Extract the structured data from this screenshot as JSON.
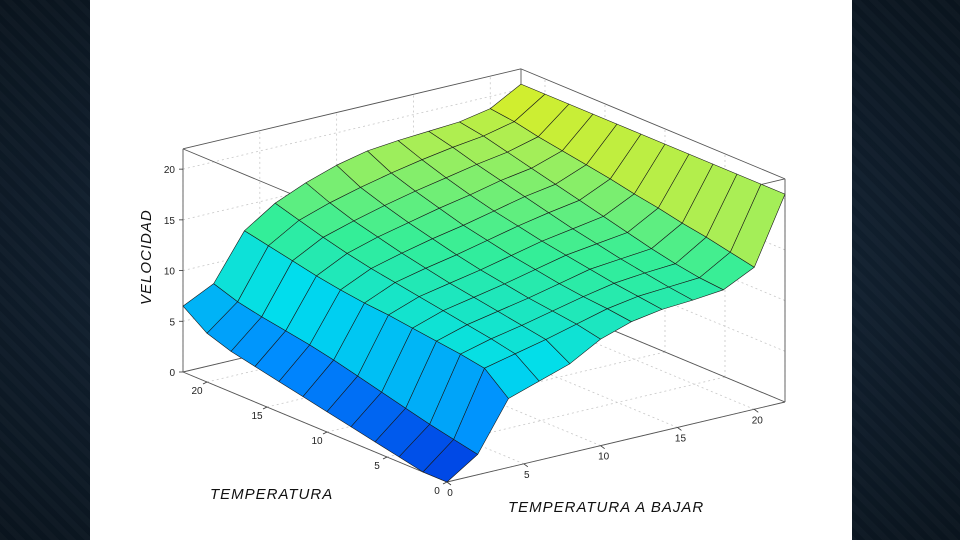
{
  "colors": {
    "background": "#0f1d2b",
    "figure": "#ffffff",
    "colormap": [
      "#0033dd",
      "#0088ff",
      "#00ddee",
      "#33ee99",
      "#aaee55",
      "#ffee00"
    ]
  },
  "chart_data": {
    "type": "surface",
    "title": "",
    "xlabel": "TEMPERATURA A   BAJAR",
    "ylabel": "TEMPERATURA",
    "zlabel": "VELOCIDAD",
    "x_ticks": [
      "0",
      "5",
      "10",
      "15",
      "20"
    ],
    "y_ticks": [
      "0",
      "5",
      "10",
      "15",
      "20"
    ],
    "z_ticks": [
      "0",
      "5",
      "10",
      "15",
      "20"
    ],
    "xlim": [
      0,
      22
    ],
    "ylim": [
      0,
      22
    ],
    "zlim": [
      0,
      22
    ],
    "grid": true,
    "x": [
      0,
      2,
      4,
      6,
      8,
      10,
      12,
      14,
      16,
      18,
      20,
      22
    ],
    "y": [
      0,
      2,
      4,
      6,
      8,
      10,
      12,
      14,
      16,
      18,
      20,
      22
    ],
    "z": [
      [
        0,
        2,
        6.8,
        7.8,
        8.8,
        10.5,
        11.5,
        12,
        12.2,
        12.5,
        14,
        20.5
      ],
      [
        0,
        2.5,
        8.8,
        9.5,
        10.2,
        11,
        11.8,
        12.3,
        12.5,
        12.7,
        14.5,
        20.5
      ],
      [
        0.5,
        3,
        9.2,
        10,
        10.6,
        11.3,
        12,
        12.6,
        12.9,
        13.1,
        15,
        20.5
      ],
      [
        1,
        3.6,
        9.5,
        10.4,
        11,
        11.6,
        12.3,
        13,
        13.3,
        13.6,
        15.4,
        20.5
      ],
      [
        1.5,
        4.2,
        9.8,
        10.8,
        11.4,
        12,
        12.7,
        13.4,
        13.8,
        14.2,
        15.9,
        20.5
      ],
      [
        2,
        4.8,
        10.1,
        11.2,
        11.8,
        12.4,
        13.1,
        13.8,
        14.3,
        14.8,
        16.3,
        20.5
      ],
      [
        2.5,
        5.4,
        10.3,
        11.6,
        12.3,
        12.9,
        13.6,
        14.3,
        14.9,
        15.4,
        16.8,
        20.5
      ],
      [
        3,
        5.9,
        10.6,
        12,
        12.8,
        13.5,
        14.1,
        14.8,
        15.5,
        16,
        17.2,
        20.5
      ],
      [
        3.5,
        6.3,
        11,
        12.5,
        13.4,
        14.1,
        14.8,
        15.4,
        16.1,
        16.6,
        17.6,
        20.5
      ],
      [
        4,
        6.7,
        11.5,
        13.1,
        14,
        14.8,
        15.5,
        16.1,
        16.7,
        17.2,
        18,
        20.5
      ],
      [
        4.8,
        7.2,
        12,
        13.8,
        14.8,
        15.6,
        16.3,
        16.9,
        17.4,
        17.8,
        18.5,
        20.5
      ],
      [
        6.5,
        8,
        12.5,
        14.5,
        15.8,
        16.8,
        17.5,
        17.8,
        18,
        18.2,
        18.8,
        20.5
      ]
    ]
  }
}
